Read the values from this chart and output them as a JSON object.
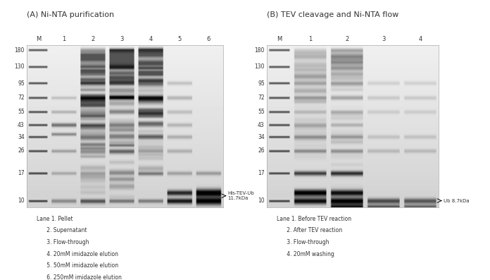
{
  "title_A": "(A) Ni-NTA purification",
  "title_B": "(B) TEV cleavage and Ni-NTA flow",
  "panel_A": {
    "lane_labels": [
      "M",
      "1",
      "2",
      "3",
      "4",
      "5",
      "6"
    ],
    "mw_markers": [
      180,
      130,
      95,
      72,
      55,
      43,
      34,
      26,
      17,
      10
    ],
    "arrow_label": "His-TEV-Ub\n11.7kDa",
    "arrow_mw": 11.7,
    "arrow_lane": 6,
    "legend": [
      "Lane 1. Pellet",
      "      2. Supernatant",
      "      3. Flow-through",
      "      4. 20mM imidazole elution",
      "      5. 50mM imidazole elution",
      "      6. 250mM imidazole elution"
    ]
  },
  "panel_B": {
    "lane_labels": [
      "M",
      "1",
      "2",
      "3",
      "4"
    ],
    "mw_markers": [
      180,
      130,
      95,
      72,
      55,
      43,
      34,
      26,
      17,
      10
    ],
    "arrow_label": "Ub 8.7kDa",
    "arrow_mw": 8.7,
    "arrow_lane": 4,
    "legend": [
      "Lane 1. Before TEV reaction",
      "      2. After TEV reaction",
      "      3. Flow-through",
      "      4. 20mM washing"
    ]
  },
  "text_color": "#333333",
  "background": "#ffffff",
  "font_size_title": 8,
  "font_size_mw": 5.5,
  "font_size_legend": 5.5,
  "font_size_lane": 6
}
